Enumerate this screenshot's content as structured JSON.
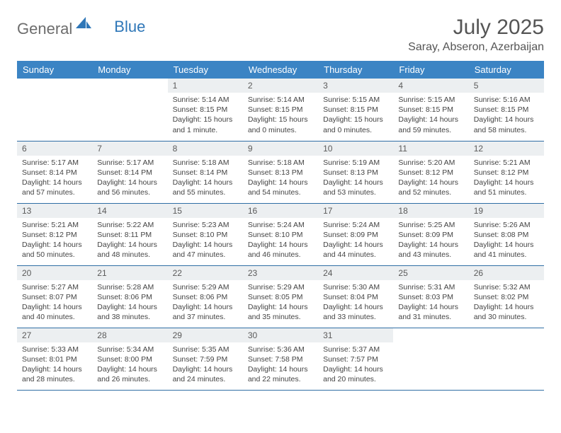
{
  "brand": {
    "word1": "General",
    "word2": "Blue"
  },
  "title": "July 2025",
  "location": "Saray, Abseron, Azerbaijan",
  "colors": {
    "header_bg": "#3b84c4",
    "header_text": "#ffffff",
    "daynum_bg": "#eceff1",
    "border": "#2f6ea5",
    "logo_gray": "#6d6d6d",
    "logo_blue": "#2f77b8"
  },
  "day_headers": [
    "Sunday",
    "Monday",
    "Tuesday",
    "Wednesday",
    "Thursday",
    "Friday",
    "Saturday"
  ],
  "weeks": [
    [
      {
        "n": "",
        "sr": "",
        "ss": "",
        "dl": ""
      },
      {
        "n": "",
        "sr": "",
        "ss": "",
        "dl": ""
      },
      {
        "n": "1",
        "sr": "Sunrise: 5:14 AM",
        "ss": "Sunset: 8:15 PM",
        "dl": "Daylight: 15 hours and 1 minute."
      },
      {
        "n": "2",
        "sr": "Sunrise: 5:14 AM",
        "ss": "Sunset: 8:15 PM",
        "dl": "Daylight: 15 hours and 0 minutes."
      },
      {
        "n": "3",
        "sr": "Sunrise: 5:15 AM",
        "ss": "Sunset: 8:15 PM",
        "dl": "Daylight: 15 hours and 0 minutes."
      },
      {
        "n": "4",
        "sr": "Sunrise: 5:15 AM",
        "ss": "Sunset: 8:15 PM",
        "dl": "Daylight: 14 hours and 59 minutes."
      },
      {
        "n": "5",
        "sr": "Sunrise: 5:16 AM",
        "ss": "Sunset: 8:15 PM",
        "dl": "Daylight: 14 hours and 58 minutes."
      }
    ],
    [
      {
        "n": "6",
        "sr": "Sunrise: 5:17 AM",
        "ss": "Sunset: 8:14 PM",
        "dl": "Daylight: 14 hours and 57 minutes."
      },
      {
        "n": "7",
        "sr": "Sunrise: 5:17 AM",
        "ss": "Sunset: 8:14 PM",
        "dl": "Daylight: 14 hours and 56 minutes."
      },
      {
        "n": "8",
        "sr": "Sunrise: 5:18 AM",
        "ss": "Sunset: 8:14 PM",
        "dl": "Daylight: 14 hours and 55 minutes."
      },
      {
        "n": "9",
        "sr": "Sunrise: 5:18 AM",
        "ss": "Sunset: 8:13 PM",
        "dl": "Daylight: 14 hours and 54 minutes."
      },
      {
        "n": "10",
        "sr": "Sunrise: 5:19 AM",
        "ss": "Sunset: 8:13 PM",
        "dl": "Daylight: 14 hours and 53 minutes."
      },
      {
        "n": "11",
        "sr": "Sunrise: 5:20 AM",
        "ss": "Sunset: 8:12 PM",
        "dl": "Daylight: 14 hours and 52 minutes."
      },
      {
        "n": "12",
        "sr": "Sunrise: 5:21 AM",
        "ss": "Sunset: 8:12 PM",
        "dl": "Daylight: 14 hours and 51 minutes."
      }
    ],
    [
      {
        "n": "13",
        "sr": "Sunrise: 5:21 AM",
        "ss": "Sunset: 8:12 PM",
        "dl": "Daylight: 14 hours and 50 minutes."
      },
      {
        "n": "14",
        "sr": "Sunrise: 5:22 AM",
        "ss": "Sunset: 8:11 PM",
        "dl": "Daylight: 14 hours and 48 minutes."
      },
      {
        "n": "15",
        "sr": "Sunrise: 5:23 AM",
        "ss": "Sunset: 8:10 PM",
        "dl": "Daylight: 14 hours and 47 minutes."
      },
      {
        "n": "16",
        "sr": "Sunrise: 5:24 AM",
        "ss": "Sunset: 8:10 PM",
        "dl": "Daylight: 14 hours and 46 minutes."
      },
      {
        "n": "17",
        "sr": "Sunrise: 5:24 AM",
        "ss": "Sunset: 8:09 PM",
        "dl": "Daylight: 14 hours and 44 minutes."
      },
      {
        "n": "18",
        "sr": "Sunrise: 5:25 AM",
        "ss": "Sunset: 8:09 PM",
        "dl": "Daylight: 14 hours and 43 minutes."
      },
      {
        "n": "19",
        "sr": "Sunrise: 5:26 AM",
        "ss": "Sunset: 8:08 PM",
        "dl": "Daylight: 14 hours and 41 minutes."
      }
    ],
    [
      {
        "n": "20",
        "sr": "Sunrise: 5:27 AM",
        "ss": "Sunset: 8:07 PM",
        "dl": "Daylight: 14 hours and 40 minutes."
      },
      {
        "n": "21",
        "sr": "Sunrise: 5:28 AM",
        "ss": "Sunset: 8:06 PM",
        "dl": "Daylight: 14 hours and 38 minutes."
      },
      {
        "n": "22",
        "sr": "Sunrise: 5:29 AM",
        "ss": "Sunset: 8:06 PM",
        "dl": "Daylight: 14 hours and 37 minutes."
      },
      {
        "n": "23",
        "sr": "Sunrise: 5:29 AM",
        "ss": "Sunset: 8:05 PM",
        "dl": "Daylight: 14 hours and 35 minutes."
      },
      {
        "n": "24",
        "sr": "Sunrise: 5:30 AM",
        "ss": "Sunset: 8:04 PM",
        "dl": "Daylight: 14 hours and 33 minutes."
      },
      {
        "n": "25",
        "sr": "Sunrise: 5:31 AM",
        "ss": "Sunset: 8:03 PM",
        "dl": "Daylight: 14 hours and 31 minutes."
      },
      {
        "n": "26",
        "sr": "Sunrise: 5:32 AM",
        "ss": "Sunset: 8:02 PM",
        "dl": "Daylight: 14 hours and 30 minutes."
      }
    ],
    [
      {
        "n": "27",
        "sr": "Sunrise: 5:33 AM",
        "ss": "Sunset: 8:01 PM",
        "dl": "Daylight: 14 hours and 28 minutes."
      },
      {
        "n": "28",
        "sr": "Sunrise: 5:34 AM",
        "ss": "Sunset: 8:00 PM",
        "dl": "Daylight: 14 hours and 26 minutes."
      },
      {
        "n": "29",
        "sr": "Sunrise: 5:35 AM",
        "ss": "Sunset: 7:59 PM",
        "dl": "Daylight: 14 hours and 24 minutes."
      },
      {
        "n": "30",
        "sr": "Sunrise: 5:36 AM",
        "ss": "Sunset: 7:58 PM",
        "dl": "Daylight: 14 hours and 22 minutes."
      },
      {
        "n": "31",
        "sr": "Sunrise: 5:37 AM",
        "ss": "Sunset: 7:57 PM",
        "dl": "Daylight: 14 hours and 20 minutes."
      },
      {
        "n": "",
        "sr": "",
        "ss": "",
        "dl": ""
      },
      {
        "n": "",
        "sr": "",
        "ss": "",
        "dl": ""
      }
    ]
  ]
}
